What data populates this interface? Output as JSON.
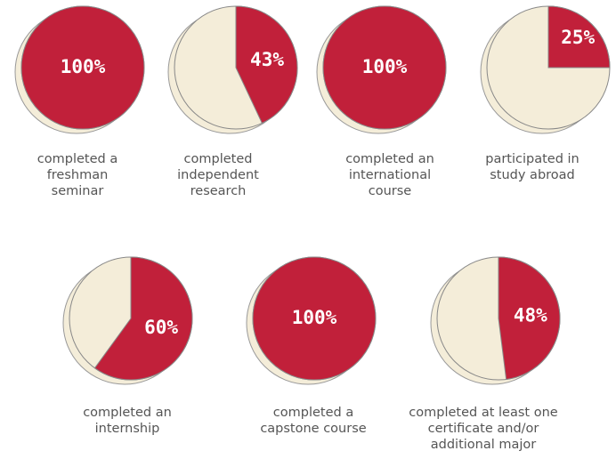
{
  "chart_data": [
    {
      "type": "pie",
      "title": "completed a freshman seminar",
      "values": [
        100
      ],
      "value_labels": [
        "100%"
      ],
      "color": "#c1203a",
      "rest_color": "#f4edd9"
    },
    {
      "type": "pie",
      "title": "completed independent research",
      "values": [
        43
      ],
      "value_labels": [
        "43%"
      ],
      "color": "#c1203a",
      "rest_color": "#f4edd9"
    },
    {
      "type": "pie",
      "title": "completed an international course",
      "values": [
        100
      ],
      "value_labels": [
        "100%"
      ],
      "color": "#c1203a",
      "rest_color": "#f4edd9"
    },
    {
      "type": "pie",
      "title": "participated in study abroad",
      "values": [
        25
      ],
      "value_labels": [
        "25%"
      ],
      "color": "#c1203a",
      "rest_color": "#f4edd9"
    },
    {
      "type": "pie",
      "title": "completed an internship",
      "values": [
        60
      ],
      "value_labels": [
        "60%"
      ],
      "color": "#c1203a",
      "rest_color": "#f4edd9"
    },
    {
      "type": "pie",
      "title": "completed a capstone course",
      "values": [
        100
      ],
      "value_labels": [
        "100%"
      ],
      "color": "#c1203a",
      "rest_color": "#f4edd9"
    },
    {
      "type": "pie",
      "title": "completed at least one certificate and/or additional major",
      "values": [
        48
      ],
      "value_labels": [
        "48%"
      ],
      "color": "#c1203a",
      "rest_color": "#f4edd9"
    }
  ]
}
